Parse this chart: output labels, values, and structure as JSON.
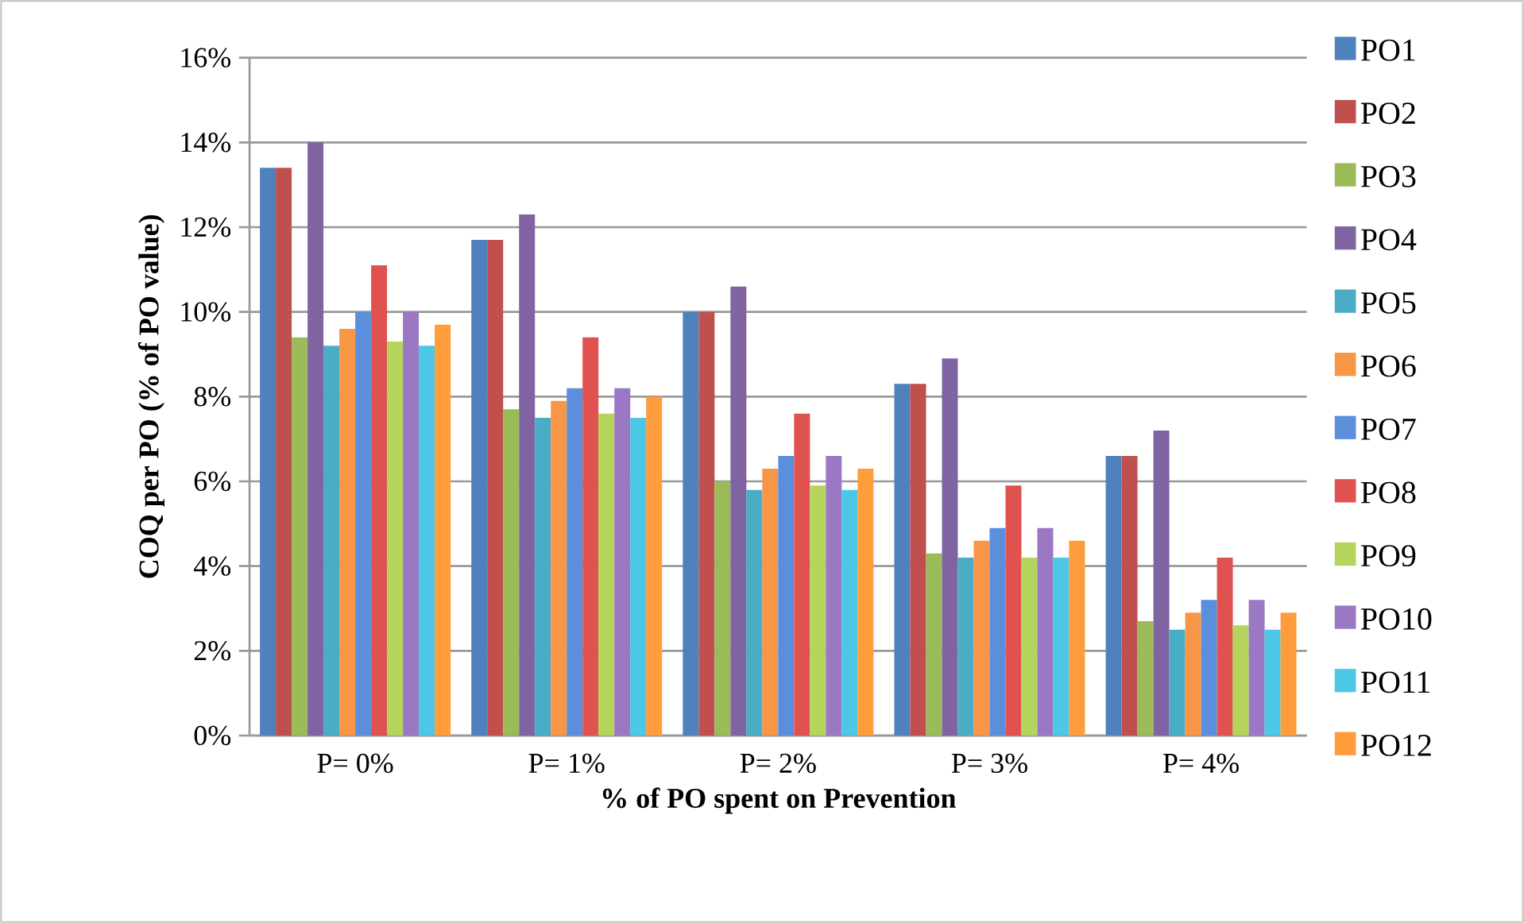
{
  "chart_data": {
    "type": "bar",
    "xlabel": "% of PO spent on Prevention",
    "ylabel": "COQ per PO (% of PO value)",
    "categories": [
      "P= 0%",
      "P= 1%",
      "P= 2%",
      "P= 3%",
      "P= 4%"
    ],
    "ylim": [
      0,
      16
    ],
    "yticks": [
      {
        "value": 0,
        "label": "0%"
      },
      {
        "value": 2,
        "label": "2%"
      },
      {
        "value": 4,
        "label": "4%"
      },
      {
        "value": 6,
        "label": "6%"
      },
      {
        "value": 8,
        "label": "8%"
      },
      {
        "value": 10,
        "label": "10%"
      },
      {
        "value": 12,
        "label": "12%"
      },
      {
        "value": 14,
        "label": "14%"
      },
      {
        "value": 16,
        "label": "16%"
      }
    ],
    "grid": "y",
    "legend": "right",
    "series": [
      {
        "name": "PO1",
        "color": "#4f81bd",
        "values": [
          13.4,
          11.7,
          10.0,
          8.3,
          6.6
        ]
      },
      {
        "name": "PO2",
        "color": "#c0504d",
        "values": [
          13.4,
          11.7,
          10.0,
          8.3,
          6.6
        ]
      },
      {
        "name": "PO3",
        "color": "#9bbb59",
        "values": [
          9.4,
          7.7,
          6.0,
          4.3,
          2.7
        ]
      },
      {
        "name": "PO4",
        "color": "#8064a2",
        "values": [
          14.0,
          12.3,
          10.6,
          8.9,
          7.2
        ]
      },
      {
        "name": "PO5",
        "color": "#4bacc6",
        "values": [
          9.2,
          7.5,
          5.8,
          4.2,
          2.5
        ]
      },
      {
        "name": "PO6",
        "color": "#f79646",
        "values": [
          9.6,
          7.9,
          6.3,
          4.6,
          2.9
        ]
      },
      {
        "name": "PO7",
        "color": "#5b8fdc",
        "values": [
          10.0,
          8.2,
          6.6,
          4.9,
          3.2
        ]
      },
      {
        "name": "PO8",
        "color": "#e0524f",
        "values": [
          11.1,
          9.4,
          7.6,
          5.9,
          4.2
        ]
      },
      {
        "name": "PO9",
        "color": "#b5d45c",
        "values": [
          9.3,
          7.6,
          5.9,
          4.2,
          2.6
        ]
      },
      {
        "name": "PO10",
        "color": "#9a78c4",
        "values": [
          10.0,
          8.2,
          6.6,
          4.9,
          3.2
        ]
      },
      {
        "name": "PO11",
        "color": "#4cc8e6",
        "values": [
          9.2,
          7.5,
          5.8,
          4.2,
          2.5
        ]
      },
      {
        "name": "PO12",
        "color": "#ff9c3c",
        "values": [
          9.7,
          8.0,
          6.3,
          4.6,
          2.9
        ]
      }
    ]
  }
}
